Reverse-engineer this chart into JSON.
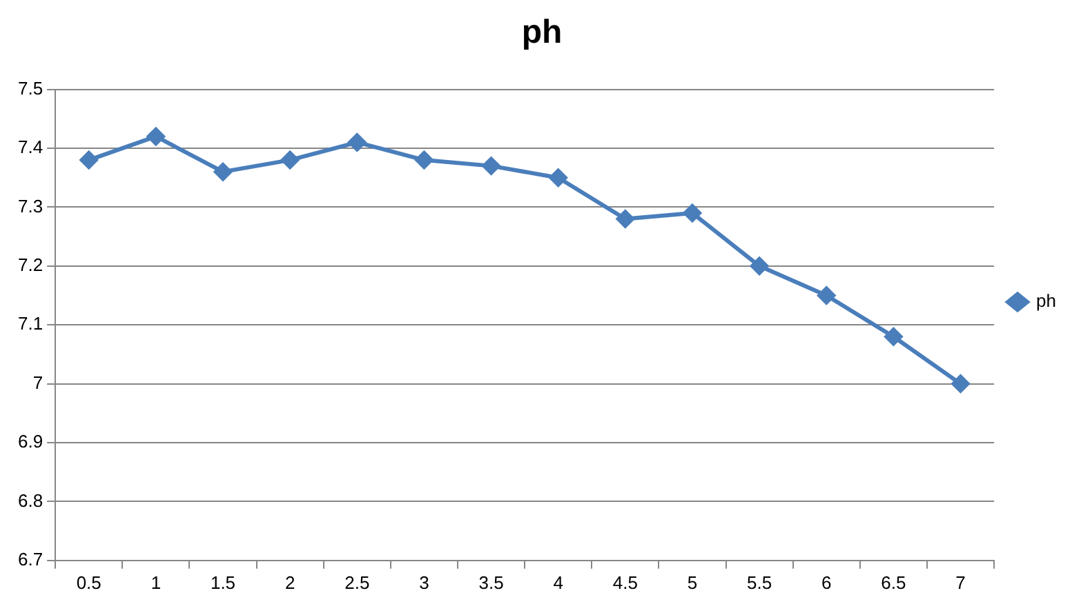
{
  "chart_data": {
    "type": "line",
    "title": "ph",
    "categories": [
      "0.5",
      "1",
      "1.5",
      "2",
      "2.5",
      "3",
      "3.5",
      "4",
      "4.5",
      "5",
      "5.5",
      "6",
      "6.5",
      "7"
    ],
    "series": [
      {
        "name": "ph",
        "color": "#4a7ebb",
        "values": [
          7.38,
          7.42,
          7.36,
          7.38,
          7.41,
          7.38,
          7.37,
          7.35,
          7.28,
          7.29,
          7.2,
          7.15,
          7.08,
          7.0
        ]
      }
    ],
    "ylim": [
      6.7,
      7.5
    ],
    "yticks": [
      6.7,
      6.8,
      6.9,
      7,
      7.1,
      7.2,
      7.3,
      7.4,
      7.5
    ],
    "grid": "y",
    "legend": "right",
    "marker": "diamond",
    "line_style": "solid"
  }
}
